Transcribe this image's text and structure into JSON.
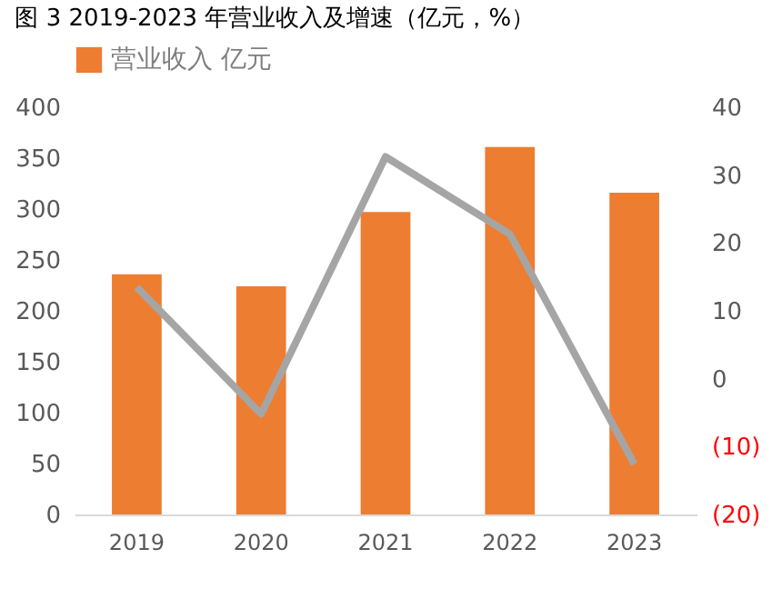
{
  "chart_data": {
    "type": "bar",
    "title": "图 3 2019-2023 年营业收入及增速（亿元，%）",
    "categories": [
      "2019",
      "2020",
      "2021",
      "2022",
      "2023"
    ],
    "series": [
      {
        "name": "营业收入 亿元",
        "color": "#ed7d31",
        "values": [
          236,
          224,
          297,
          361,
          316
        ]
      },
      {
        "type": "line",
        "axis": "y2",
        "color": "#a5a5a5",
        "values": [
          13.5,
          -5.2,
          32.7,
          21.3,
          -12.6
        ]
      }
    ],
    "ylim": [
      0,
      400
    ],
    "yticks": [
      0,
      50,
      100,
      150,
      200,
      250,
      300,
      350,
      400
    ],
    "y2lim": [
      -20,
      40
    ],
    "y2ticks": [
      {
        "value": -20,
        "label": "(20)"
      },
      {
        "value": -10,
        "label": "(10)"
      },
      0,
      10,
      20,
      30,
      40
    ],
    "grid": false,
    "legend": "top",
    "marker": "none",
    "line_style": "solid"
  }
}
